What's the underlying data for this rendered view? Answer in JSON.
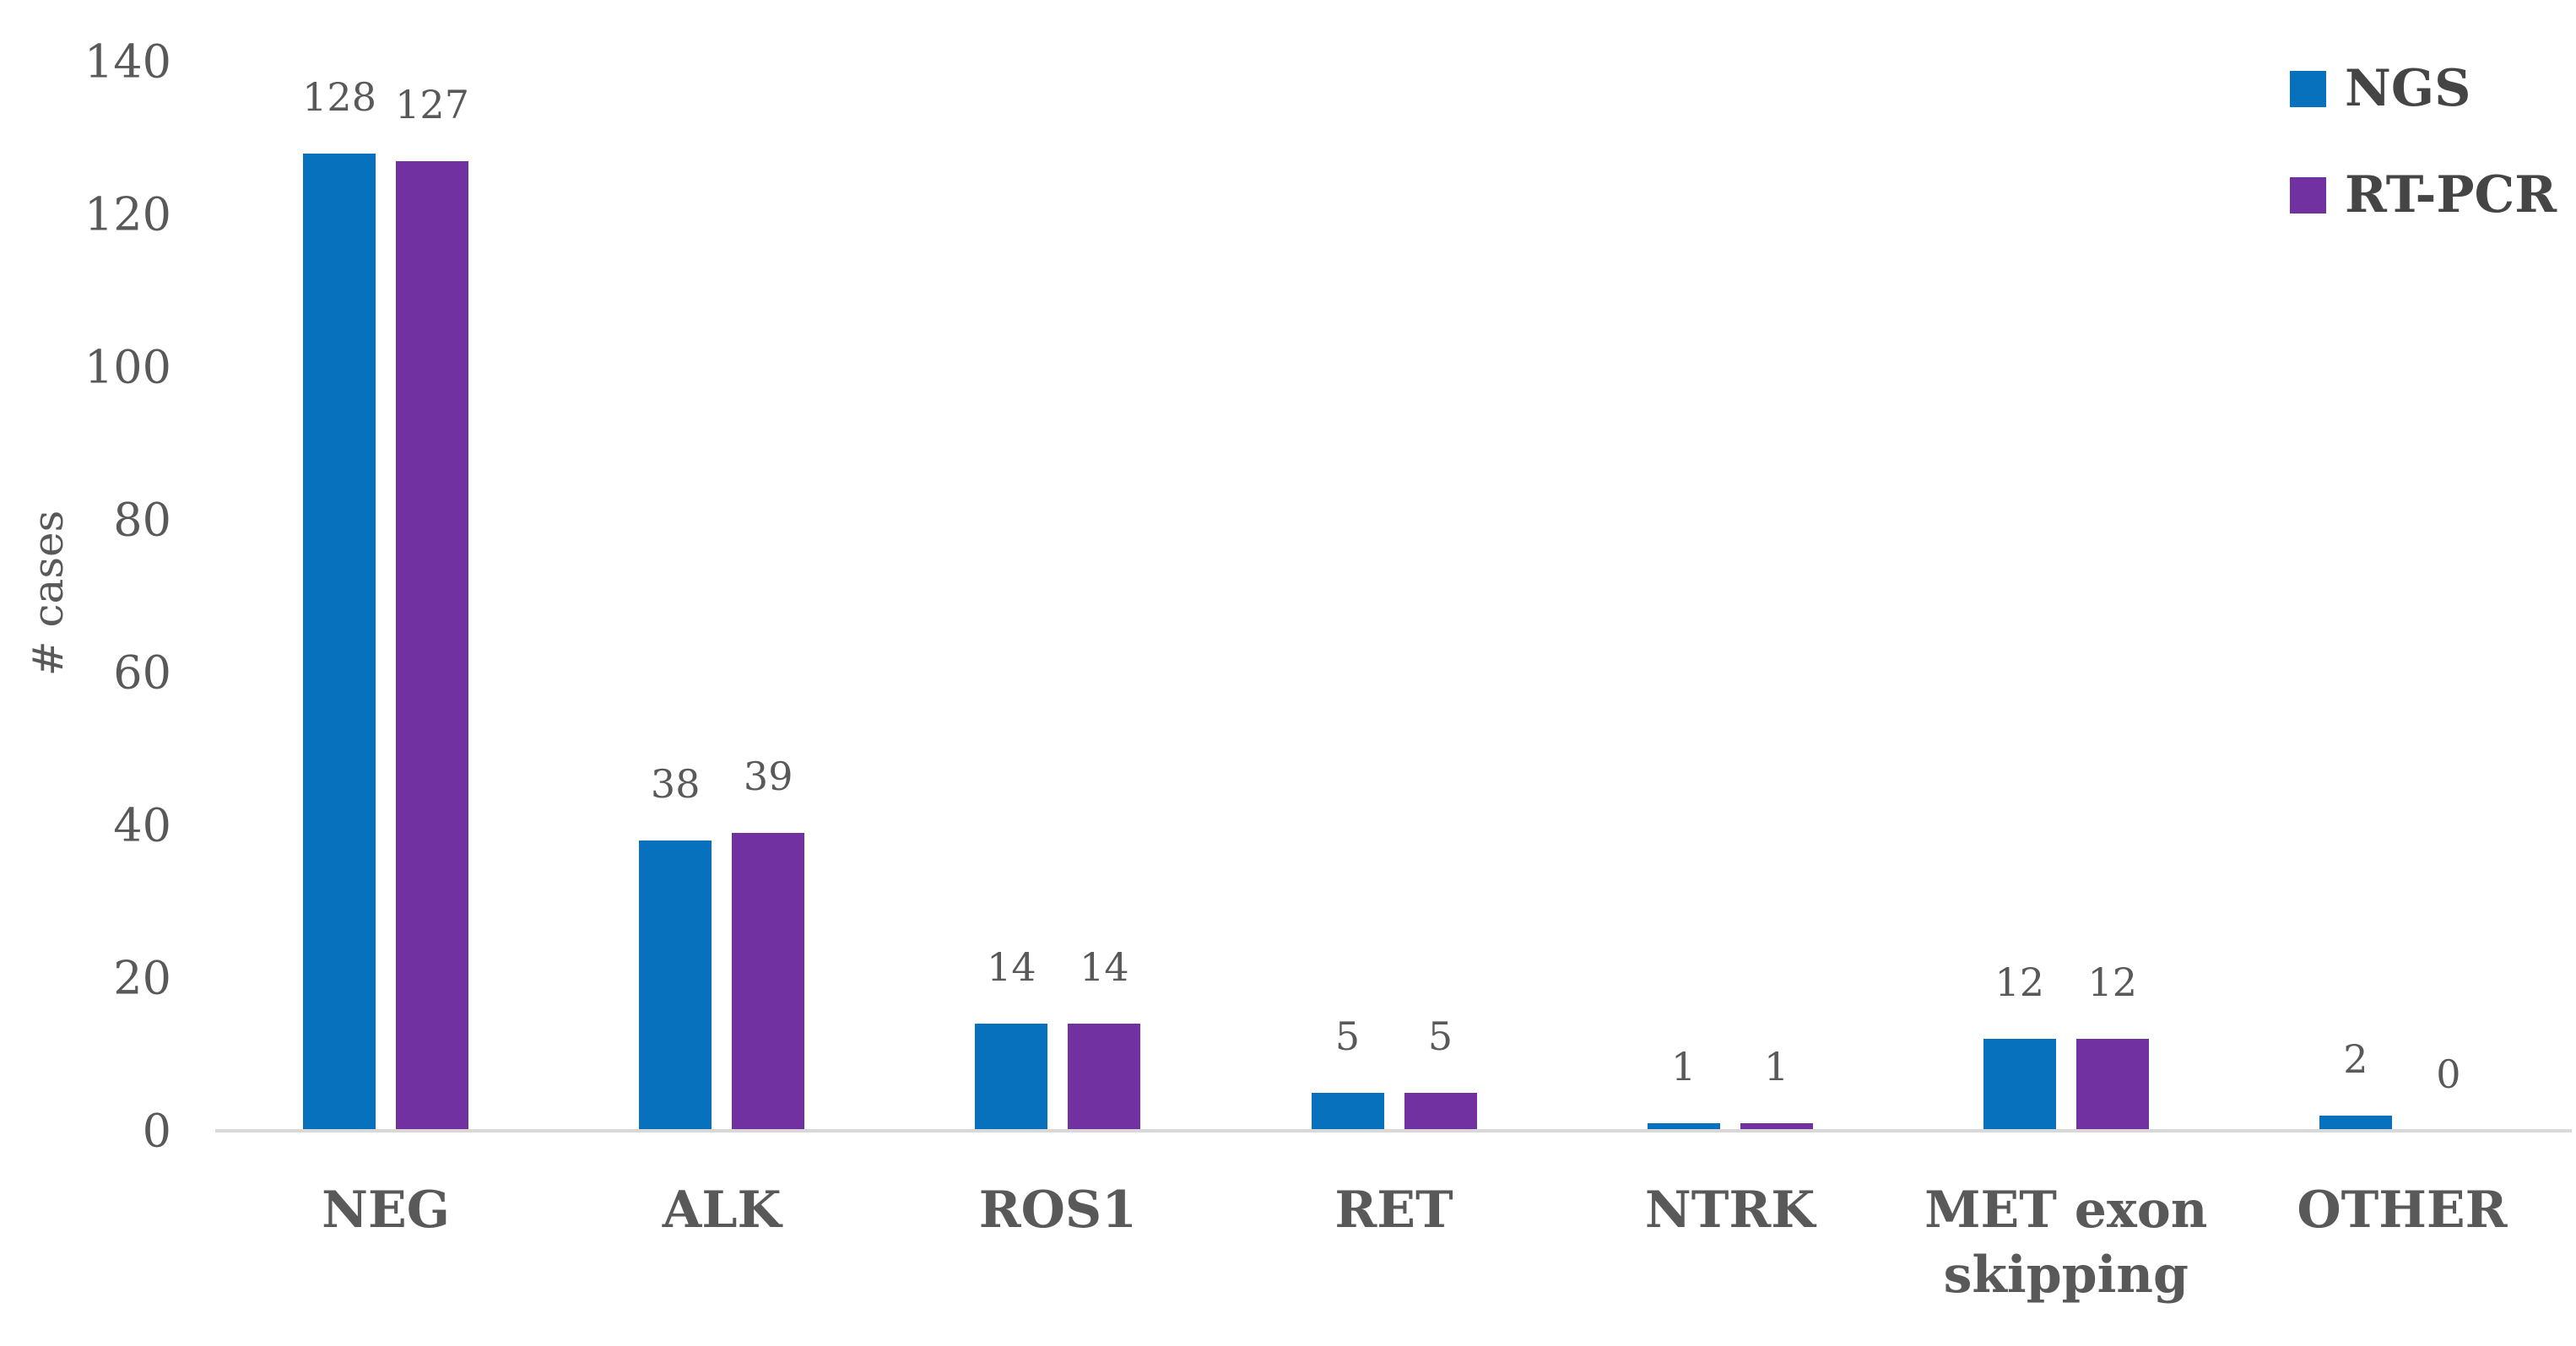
{
  "chart_data": {
    "type": "bar",
    "categories": [
      "NEG",
      "ALK",
      "ROS1",
      "RET",
      "NTRK",
      "MET exon\nskipping",
      "OTHER"
    ],
    "series": [
      {
        "name": "NGS",
        "color": "#0771be",
        "values": [
          128,
          38,
          14,
          5,
          1,
          12,
          2
        ]
      },
      {
        "name": "RT-PCR",
        "color": "#7231a1",
        "values": [
          127,
          39,
          14,
          5,
          1,
          12,
          0
        ]
      }
    ],
    "title": "",
    "xlabel": "",
    "ylabel": "# cases",
    "yticks": [
      0,
      20,
      40,
      60,
      80,
      100,
      120,
      140
    ],
    "ylim": [
      0,
      140
    ],
    "grid": false,
    "legend_position": "top-right",
    "value_labels_shown": true,
    "colors": {
      "axis_line": "#d8d8d8",
      "tick_text": "#595959",
      "category_text": "#595959",
      "legend_text": "#454545"
    }
  }
}
